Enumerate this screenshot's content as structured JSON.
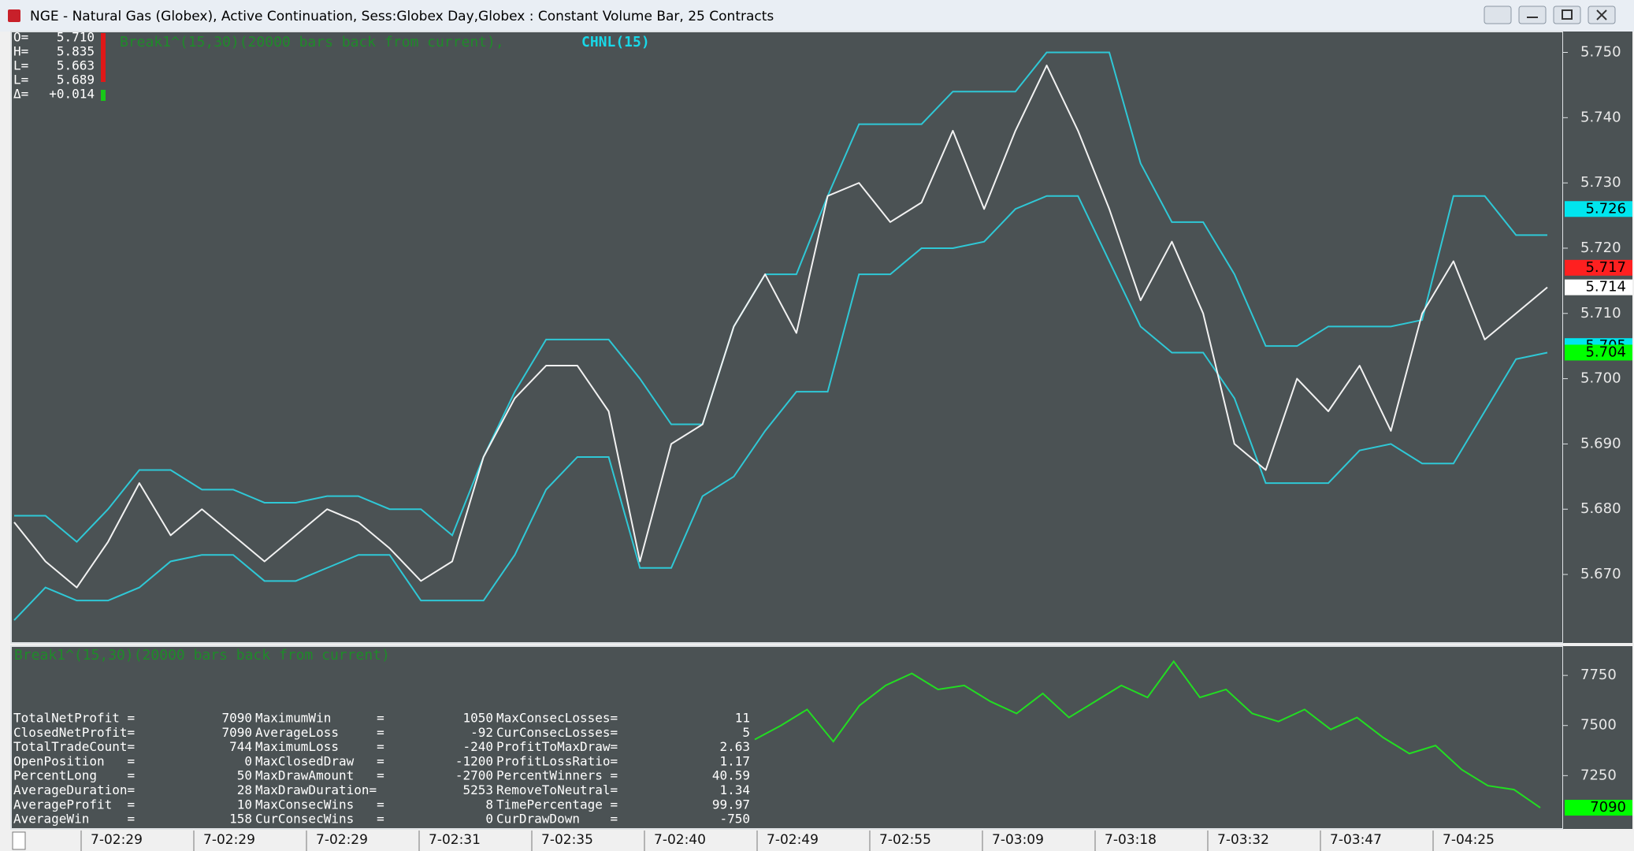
{
  "window": {
    "title": "NGE - Natural Gas (Globex), Active Continuation, Sess:Globex Day,Globex : Constant Volume Bar, 25 Contracts"
  },
  "readout": [
    {
      "label": "O=",
      "value": "5.710"
    },
    {
      "label": "H=",
      "value": "5.835"
    },
    {
      "label": "L=",
      "value": "5.663"
    },
    {
      "label": "L=",
      "value": "5.689"
    },
    {
      "label": "Δ=",
      "value": "+0.014"
    }
  ],
  "price_panel": {
    "study_label": "Break1^(15,30)(20000 bars back from current),",
    "channel_label": "CHNL(15)",
    "ylim": [
      5.6595,
      5.7532
    ],
    "yticks": [
      {
        "value": 5.67,
        "label": "5.670"
      },
      {
        "value": 5.68,
        "label": "5.680"
      },
      {
        "value": 5.69,
        "label": "5.690"
      },
      {
        "value": 5.7,
        "label": "5.700"
      },
      {
        "value": 5.71,
        "label": "5.710"
      },
      {
        "value": 5.72,
        "label": "5.720"
      },
      {
        "value": 5.73,
        "label": "5.730"
      },
      {
        "value": 5.74,
        "label": "5.740"
      },
      {
        "value": 5.75,
        "label": "5.750"
      }
    ],
    "close": [
      5.678,
      5.672,
      5.668,
      5.675,
      5.684,
      5.676,
      5.68,
      5.676,
      5.672,
      5.676,
      5.68,
      5.678,
      5.674,
      5.669,
      5.672,
      5.688,
      5.697,
      5.702,
      5.702,
      5.695,
      5.672,
      5.69,
      5.693,
      5.708,
      5.716,
      5.707,
      5.728,
      5.73,
      5.724,
      5.727,
      5.738,
      5.726,
      5.738,
      5.748,
      5.738,
      5.726,
      5.712,
      5.721,
      5.71,
      5.69,
      5.686,
      5.7,
      5.695,
      5.702,
      5.692,
      5.71,
      5.718,
      5.706,
      5.71,
      5.714
    ],
    "channel_high": [
      5.679,
      5.679,
      5.675,
      5.68,
      5.686,
      5.686,
      5.683,
      5.683,
      5.681,
      5.681,
      5.682,
      5.682,
      5.68,
      5.68,
      5.676,
      5.688,
      5.698,
      5.706,
      5.706,
      5.706,
      5.7,
      5.693,
      5.693,
      5.708,
      5.716,
      5.716,
      5.728,
      5.739,
      5.739,
      5.739,
      5.744,
      5.744,
      5.744,
      5.75,
      5.75,
      5.75,
      5.733,
      5.724,
      5.724,
      5.716,
      5.705,
      5.705,
      5.708,
      5.708,
      5.708,
      5.709,
      5.728,
      5.728,
      5.722,
      5.722
    ],
    "channel_low": [
      5.663,
      5.668,
      5.666,
      5.666,
      5.668,
      5.672,
      5.673,
      5.673,
      5.669,
      5.669,
      5.671,
      5.673,
      5.673,
      5.666,
      5.666,
      5.666,
      5.673,
      5.683,
      5.688,
      5.688,
      5.671,
      5.671,
      5.682,
      5.685,
      5.692,
      5.698,
      5.698,
      5.716,
      5.716,
      5.72,
      5.72,
      5.721,
      5.726,
      5.728,
      5.728,
      5.718,
      5.708,
      5.704,
      5.704,
      5.697,
      5.684,
      5.684,
      5.684,
      5.689,
      5.69,
      5.687,
      5.687,
      5.695,
      5.703,
      5.704
    ],
    "tags": [
      {
        "value": 5.726,
        "label": "5.726",
        "color": "#00e5ee"
      },
      {
        "value": 5.717,
        "label": "5.717",
        "color": "#ff2020"
      },
      {
        "value": 5.714,
        "label": "5.714",
        "color": "#ffffff"
      },
      {
        "value": 5.705,
        "label": "5.705",
        "color": "#00e5ee"
      },
      {
        "value": 5.704,
        "label": "5.704",
        "color": "#00ff00"
      }
    ]
  },
  "equity_panel": {
    "study_label": "Break1^(15,30)(20000 bars back from current)",
    "ylim": [
      6984,
      7896
    ],
    "yticks": [
      7250,
      7500,
      7750
    ],
    "equity": [
      7430,
      7500,
      7580,
      7420,
      7600,
      7700,
      7760,
      7680,
      7700,
      7620,
      7560,
      7660,
      7540,
      7620,
      7700,
      7640,
      7820,
      7640,
      7680,
      7560,
      7520,
      7580,
      7480,
      7540,
      7440,
      7360,
      7400,
      7280,
      7200,
      7180,
      7090
    ],
    "tag": {
      "value": 7090,
      "color": "#00ff00"
    }
  },
  "stats": [
    [
      "TotalNetProfit =",
      7090,
      "MaximumWin      =",
      1050,
      "MaxConsecLosses=",
      11
    ],
    [
      "ClosedNetProfit=",
      7090,
      "AverageLoss     =",
      -92,
      "CurConsecLosses=",
      5
    ],
    [
      "TotalTradeCount=",
      744,
      "MaximumLoss     =",
      -240,
      "ProfitToMaxDraw=",
      2.63
    ],
    [
      "OpenPosition   =",
      0,
      "MaxClosedDraw   =",
      -1200,
      "ProfitLossRatio=",
      1.17
    ],
    [
      "PercentLong    =",
      50,
      "MaxDrawAmount   =",
      -2700,
      "PercentWinners =",
      40.59
    ],
    [
      "AverageDuration=",
      28,
      "MaxDrawDuration=",
      5253,
      "RemoveToNeutral=",
      1.34
    ],
    [
      "AverageProfit  =",
      10,
      "MaxConsecWins   =",
      8,
      "TimePercentage =",
      99.97
    ],
    [
      "AverageWin     =",
      158,
      "CurConsecWins   =",
      0,
      "CurDrawDown    =",
      -750
    ]
  ],
  "time_axis": [
    "7-02:29",
    "7-02:29",
    "7-02:29",
    "7-02:31",
    "7-02:35",
    "7-02:40",
    "7-02:49",
    "7-02:55",
    "7-03:09",
    "7-03:18",
    "7-03:32",
    "7-03:47",
    "7-04:25"
  ]
}
